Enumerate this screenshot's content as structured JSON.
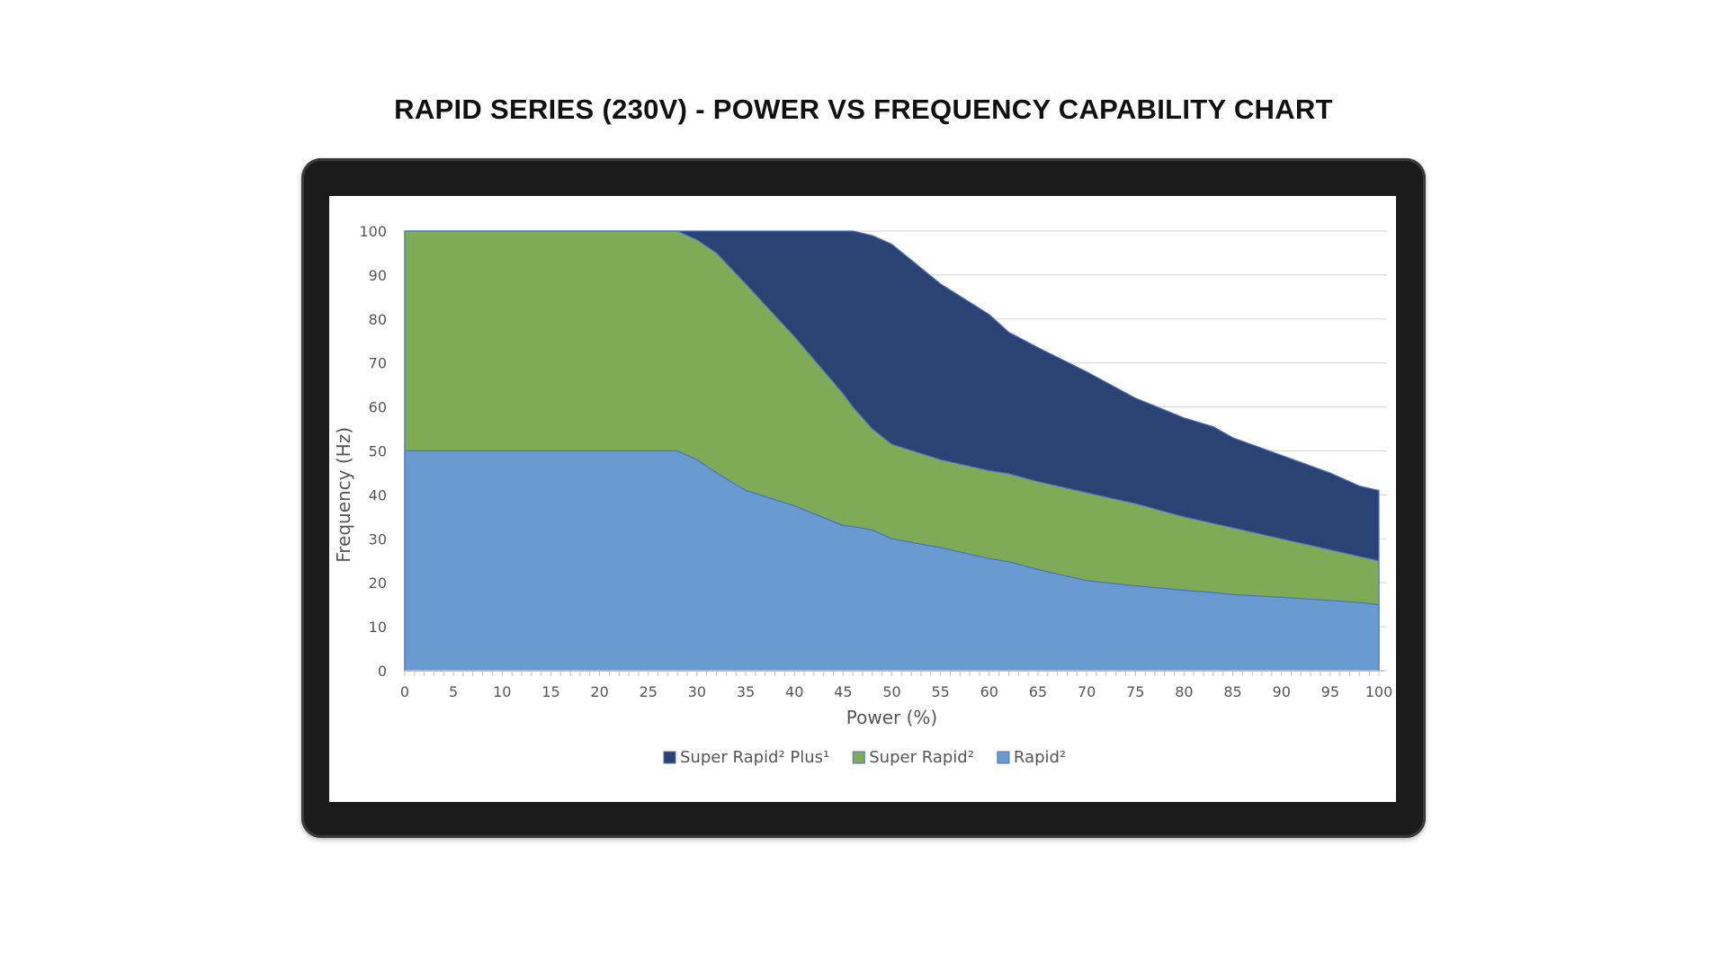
{
  "chart_data": {
    "type": "area",
    "stacked_display": "overlapping filled areas (values are upper boundaries)",
    "title": "RAPID SERIES (230V) - POWER VS FREQUENCY CAPABILITY CHART",
    "xlabel": "Power (%)",
    "ylabel": "Frequency (Hz)",
    "xlim": [
      0,
      100
    ],
    "ylim": [
      0,
      100
    ],
    "xticks": [
      "0",
      "5",
      "10",
      "15",
      "20",
      "25",
      "30",
      "35",
      "40",
      "45",
      "50",
      "55",
      "60",
      "65",
      "70",
      "75",
      "80",
      "85",
      "90",
      "95",
      "100"
    ],
    "yticks": [
      "0",
      "10",
      "20",
      "30",
      "40",
      "50",
      "60",
      "70",
      "80",
      "90",
      "100"
    ],
    "grid": "horizontal",
    "legend_position": "bottom",
    "x": [
      0,
      5,
      10,
      15,
      20,
      25,
      28,
      30,
      32,
      35,
      40,
      45,
      46,
      48,
      50,
      55,
      60,
      62,
      65,
      70,
      75,
      80,
      83,
      85,
      90,
      95,
      98,
      100
    ],
    "series": [
      {
        "name": "Super Rapid² Plus¹",
        "color": "#2b4372",
        "values": [
          100,
          100,
          100,
          100,
          100,
          100,
          100,
          100,
          100,
          100,
          100,
          100,
          100,
          99,
          97,
          88,
          81,
          77,
          73.5,
          68,
          62,
          57.5,
          55.5,
          53,
          49,
          45,
          42,
          41
        ]
      },
      {
        "name": "Super Rapid²",
        "color": "#7fab56",
        "values": [
          100,
          100,
          100,
          100,
          100,
          100,
          100,
          98,
          95,
          88,
          76,
          63,
          60,
          55,
          51.5,
          48,
          45.5,
          44.8,
          43,
          40.5,
          38,
          35,
          33.5,
          32.5,
          30,
          27.5,
          26,
          25
        ]
      },
      {
        "name": "Rapid²",
        "color": "#6a9bd0",
        "values": [
          50,
          50,
          50,
          50,
          50,
          50,
          50,
          48,
          45,
          41,
          37.5,
          33,
          32.8,
          32,
          30,
          28,
          25.5,
          24.8,
          23,
          20.5,
          19.3,
          18.3,
          17.8,
          17.3,
          16.7,
          16,
          15.5,
          15
        ]
      }
    ]
  }
}
